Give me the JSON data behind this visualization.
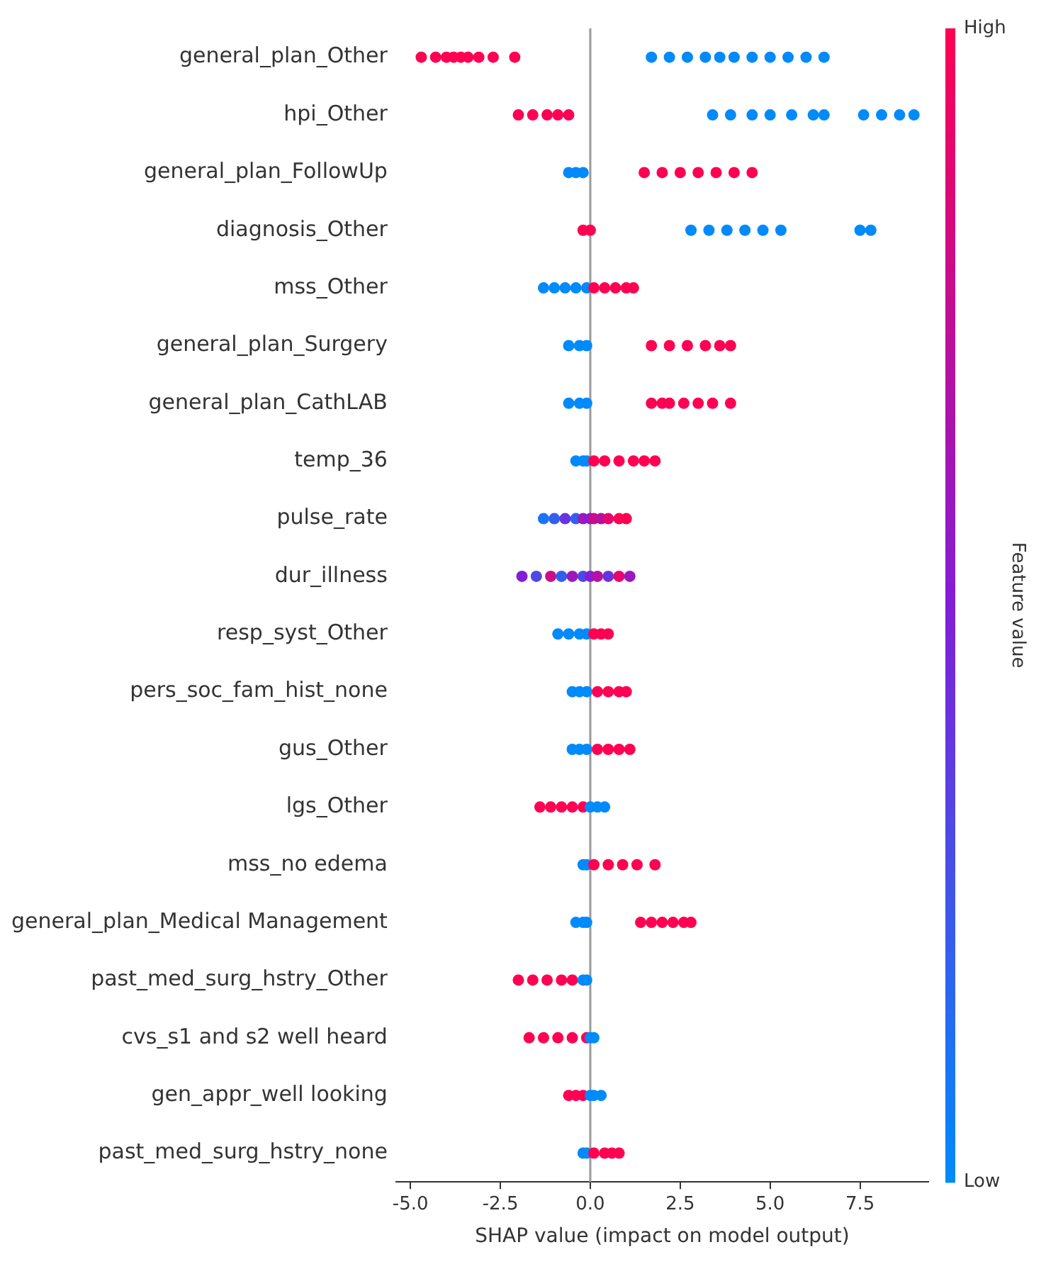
{
  "chart_data": {
    "type": "scatter",
    "orientation": "horizontal",
    "categories": [
      "general_plan_Other",
      "hpi_Other",
      "general_plan_FollowUp",
      "diagnosis_Other",
      "mss_Other",
      "general_plan_Surgery",
      "general_plan_CathLAB",
      "temp_36",
      "pulse_rate",
      "dur_illness",
      "resp_syst_Other",
      "pers_soc_fam_hist_none",
      "gus_Other",
      "lgs_Other",
      "mss_no edema",
      "general_plan_Medical Management",
      "past_med_surg_hstry_Other",
      "cvs_s1 and s2 well heard",
      "gen_appr_well looking",
      "past_med_surg_hstry_none"
    ],
    "series": [
      {
        "x": [
          "general_plan_Other",
          "general_plan_Other",
          "general_plan_Other",
          "general_plan_Other",
          "general_plan_Other",
          "general_plan_Other",
          "general_plan_Other",
          "general_plan_Other",
          "general_plan_Other",
          "general_plan_Other",
          "general_plan_Other",
          "general_plan_Other",
          "general_plan_Other",
          "general_plan_Other",
          "general_plan_Other",
          "general_plan_Other",
          "general_plan_Other",
          "general_plan_Other",
          "general_plan_Other",
          "general_plan_Other",
          "hpi_Other",
          "hpi_Other",
          "hpi_Other",
          "hpi_Other",
          "hpi_Other",
          "hpi_Other",
          "hpi_Other",
          "hpi_Other",
          "hpi_Other",
          "hpi_Other",
          "hpi_Other",
          "hpi_Other",
          "hpi_Other",
          "hpi_Other",
          "hpi_Other",
          "hpi_Other",
          "general_plan_FollowUp",
          "general_plan_FollowUp",
          "general_plan_FollowUp",
          "general_plan_FollowUp",
          "general_plan_FollowUp",
          "general_plan_FollowUp",
          "general_plan_FollowUp",
          "general_plan_FollowUp",
          "general_plan_FollowUp",
          "general_plan_FollowUp",
          "diagnosis_Other",
          "diagnosis_Other",
          "diagnosis_Other",
          "diagnosis_Other",
          "diagnosis_Other",
          "diagnosis_Other",
          "diagnosis_Other",
          "diagnosis_Other",
          "diagnosis_Other",
          "diagnosis_Other",
          "mss_Other",
          "mss_Other",
          "mss_Other",
          "mss_Other",
          "mss_Other",
          "mss_Other",
          "mss_Other",
          "mss_Other",
          "mss_Other",
          "mss_Other",
          "general_plan_Surgery",
          "general_plan_Surgery",
          "general_plan_Surgery",
          "general_plan_Surgery",
          "general_plan_Surgery",
          "general_plan_Surgery",
          "general_plan_Surgery",
          "general_plan_Surgery",
          "general_plan_Surgery",
          "general_plan_CathLAB",
          "general_plan_CathLAB",
          "general_plan_CathLAB",
          "general_plan_CathLAB",
          "general_plan_CathLAB",
          "general_plan_CathLAB",
          "general_plan_CathLAB",
          "general_plan_CathLAB",
          "general_plan_CathLAB",
          "general_plan_CathLAB",
          "temp_36",
          "temp_36",
          "temp_36",
          "temp_36",
          "temp_36",
          "temp_36",
          "temp_36",
          "temp_36",
          "temp_36",
          "pulse_rate",
          "pulse_rate",
          "pulse_rate",
          "pulse_rate",
          "pulse_rate",
          "pulse_rate",
          "pulse_rate",
          "pulse_rate",
          "pulse_rate",
          "pulse_rate",
          "pulse_rate",
          "dur_illness",
          "dur_illness",
          "dur_illness",
          "dur_illness",
          "dur_illness",
          "dur_illness",
          "dur_illness",
          "dur_illness",
          "dur_illness",
          "dur_illness",
          "dur_illness",
          "resp_syst_Other",
          "resp_syst_Other",
          "resp_syst_Other",
          "resp_syst_Other",
          "resp_syst_Other",
          "resp_syst_Other",
          "resp_syst_Other",
          "pers_soc_fam_hist_none",
          "pers_soc_fam_hist_none",
          "pers_soc_fam_hist_none",
          "pers_soc_fam_hist_none",
          "pers_soc_fam_hist_none",
          "pers_soc_fam_hist_none",
          "pers_soc_fam_hist_none",
          "gus_Other",
          "gus_Other",
          "gus_Other",
          "gus_Other",
          "gus_Other",
          "gus_Other",
          "gus_Other",
          "lgs_Other",
          "lgs_Other",
          "lgs_Other",
          "lgs_Other",
          "lgs_Other",
          "lgs_Other",
          "lgs_Other",
          "lgs_Other",
          "mss_no edema",
          "mss_no edema",
          "mss_no edema",
          "mss_no edema",
          "mss_no edema",
          "mss_no edema",
          "mss_no edema",
          "general_plan_Medical Management",
          "general_plan_Medical Management",
          "general_plan_Medical Management",
          "general_plan_Medical Management",
          "general_plan_Medical Management",
          "general_plan_Medical Management",
          "general_plan_Medical Management",
          "general_plan_Medical Management",
          "general_plan_Medical Management",
          "past_med_surg_hstry_Other",
          "past_med_surg_hstry_Other",
          "past_med_surg_hstry_Other",
          "past_med_surg_hstry_Other",
          "past_med_surg_hstry_Other",
          "past_med_surg_hstry_Other",
          "past_med_surg_hstry_Other",
          "cvs_s1 and s2 well heard",
          "cvs_s1 and s2 well heard",
          "cvs_s1 and s2 well heard",
          "cvs_s1 and s2 well heard",
          "cvs_s1 and s2 well heard",
          "cvs_s1 and s2 well heard",
          "cvs_s1 and s2 well heard",
          "gen_appr_well looking",
          "gen_appr_well looking",
          "gen_appr_well looking",
          "gen_appr_well looking",
          "gen_appr_well looking",
          "gen_appr_well looking",
          "past_med_surg_hstry_none",
          "past_med_surg_hstry_none",
          "past_med_surg_hstry_none",
          "past_med_surg_hstry_none",
          "past_med_surg_hstry_none",
          "past_med_surg_hstry_none"
        ],
        "values": [
          -4.7,
          -4.3,
          -4.0,
          -3.8,
          -3.6,
          -3.4,
          -3.1,
          -2.7,
          -2.1,
          1.7,
          2.2,
          2.7,
          3.2,
          3.6,
          4.0,
          4.5,
          5.0,
          5.5,
          6.0,
          6.5,
          -2.0,
          -1.6,
          -1.2,
          -0.9,
          -0.6,
          3.4,
          3.9,
          4.5,
          5.0,
          5.6,
          6.2,
          6.5,
          7.6,
          8.1,
          8.6,
          9.0,
          -0.6,
          -0.4,
          -0.2,
          1.5,
          2.0,
          2.5,
          3.0,
          3.5,
          4.0,
          4.5,
          -0.2,
          0.0,
          2.8,
          3.3,
          3.8,
          4.3,
          4.8,
          5.3,
          7.5,
          7.8,
          -1.3,
          -1.0,
          -0.7,
          -0.4,
          -0.1,
          0.1,
          0.4,
          0.7,
          1.0,
          1.2,
          -0.6,
          -0.3,
          -0.1,
          1.7,
          2.2,
          2.7,
          3.2,
          3.6,
          3.9,
          -0.6,
          -0.3,
          -0.1,
          1.7,
          2.0,
          2.2,
          2.6,
          3.0,
          3.4,
          3.9,
          -0.4,
          -0.2,
          -0.1,
          0.1,
          0.4,
          0.8,
          1.2,
          1.5,
          1.8,
          -1.3,
          -1.0,
          -0.7,
          -0.4,
          -0.2,
          0.0,
          0.1,
          0.3,
          0.5,
          0.8,
          1.0,
          -1.9,
          -1.5,
          -1.1,
          -0.8,
          -0.5,
          -0.2,
          0.0,
          0.2,
          0.5,
          0.8,
          1.1,
          -0.9,
          -0.6,
          -0.3,
          -0.1,
          0.1,
          0.3,
          0.5,
          -0.5,
          -0.3,
          -0.1,
          0.2,
          0.5,
          0.8,
          1.0,
          -0.5,
          -0.3,
          -0.1,
          0.2,
          0.5,
          0.8,
          1.1,
          -1.4,
          -1.1,
          -0.8,
          -0.5,
          -0.2,
          0.0,
          0.2,
          0.4,
          -0.2,
          -0.1,
          0.1,
          0.5,
          0.9,
          1.3,
          1.8,
          -0.4,
          -0.2,
          -0.1,
          1.4,
          1.7,
          2.0,
          2.3,
          2.6,
          2.8,
          -2.0,
          -1.6,
          -1.2,
          -0.8,
          -0.5,
          -0.2,
          -0.1,
          -1.7,
          -1.3,
          -0.9,
          -0.5,
          -0.1,
          0.0,
          0.1,
          -0.6,
          -0.4,
          -0.2,
          0.0,
          0.1,
          0.3,
          -0.2,
          -0.1,
          0.1,
          0.4,
          0.6,
          0.8
        ],
        "cvalues": [
          1,
          1,
          1,
          1,
          1,
          1,
          1,
          1,
          1,
          0,
          0,
          0,
          0,
          0,
          0,
          0,
          0,
          0,
          0,
          0,
          1,
          1,
          1,
          1,
          1,
          0,
          0,
          0,
          0,
          0,
          0,
          0,
          0,
          0,
          0,
          0,
          0,
          0,
          0,
          1,
          1,
          1,
          1,
          1,
          1,
          1,
          1,
          1,
          0,
          0,
          0,
          0,
          0,
          0,
          0,
          0,
          0,
          0,
          0,
          0,
          0,
          1,
          1,
          1,
          1,
          1,
          0,
          0,
          0,
          1,
          1,
          1,
          1,
          1,
          1,
          0,
          0,
          0,
          1,
          1,
          1,
          1,
          1,
          1,
          1,
          0,
          0,
          0,
          1,
          1,
          1,
          1,
          1,
          1,
          0.1,
          0.2,
          0.4,
          0.2,
          0.6,
          0.5,
          0.8,
          0.7,
          0.9,
          1,
          1,
          0.5,
          0.3,
          0.8,
          0.2,
          0.6,
          0.3,
          0.5,
          0.7,
          0.4,
          0.9,
          0.6,
          0,
          0,
          0,
          0,
          1,
          1,
          1,
          0,
          0,
          0,
          1,
          1,
          1,
          1,
          0,
          0,
          0,
          1,
          1,
          1,
          1,
          1,
          1,
          1,
          1,
          1,
          0,
          0,
          0,
          0,
          0,
          1,
          1,
          1,
          1,
          1,
          0,
          0,
          0,
          1,
          1,
          1,
          1,
          1,
          1,
          1,
          1,
          1,
          1,
          1,
          0,
          0,
          1,
          1,
          1,
          1,
          1,
          0,
          0,
          1,
          1,
          1,
          0,
          0,
          0,
          0,
          0,
          1,
          1,
          1,
          1
        ]
      }
    ],
    "xlabel": "SHAP value (impact on model output)",
    "clabel": "Feature value",
    "xlim": [
      -5.4,
      9.4
    ],
    "xticks": [
      {
        "value": -5,
        "label": "-5.0"
      },
      {
        "value": -2.5,
        "label": "-2.5"
      },
      {
        "value": 0,
        "label": "0.0"
      },
      {
        "value": 2.5,
        "label": "2.5"
      },
      {
        "value": 5,
        "label": "5.0"
      },
      {
        "value": 7.5,
        "label": "7.5"
      }
    ],
    "clim": [
      0,
      1
    ],
    "cticks": [
      {
        "value": 0,
        "label": "Low"
      },
      {
        "value": 1,
        "label": "High"
      }
    ],
    "ref_lines": [
      {
        "axis": "x",
        "value": 0,
        "color": "#999999"
      }
    ],
    "grid": false,
    "legend": false,
    "marker": "circle"
  }
}
